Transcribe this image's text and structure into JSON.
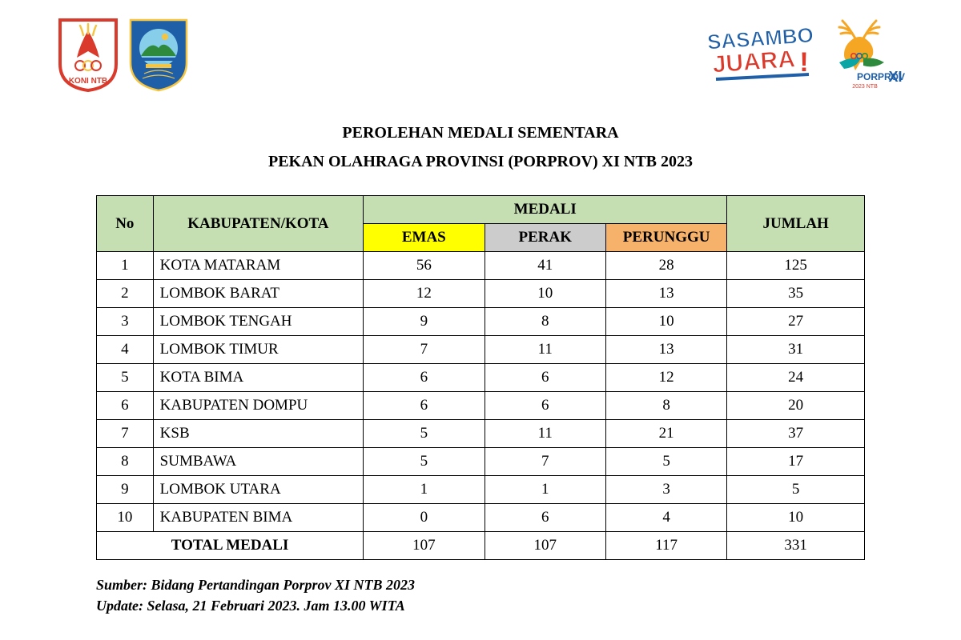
{
  "title_line1": "PEROLEHAN MEDALI SEMENTARA",
  "title_line2": "PEKAN OLAHRAGA PROVINSI (PORPROV) XI NTB 2023",
  "headers": {
    "no": "No",
    "region": "KABUPATEN/KOTA",
    "medal": "MEDALI",
    "gold": "EMAS",
    "silver": "PERAK",
    "bronze": "PERUNGGU",
    "total": "JUMLAH"
  },
  "rows": [
    {
      "no": "1",
      "name": "KOTA MATARAM",
      "g": "56",
      "s": "41",
      "b": "28",
      "t": "125"
    },
    {
      "no": "2",
      "name": "LOMBOK BARAT",
      "g": "12",
      "s": "10",
      "b": "13",
      "t": "35"
    },
    {
      "no": "3",
      "name": "LOMBOK TENGAH",
      "g": "9",
      "s": "8",
      "b": "10",
      "t": "27"
    },
    {
      "no": "4",
      "name": "LOMBOK TIMUR",
      "g": "7",
      "s": "11",
      "b": "13",
      "t": "31"
    },
    {
      "no": "5",
      "name": "KOTA BIMA",
      "g": "6",
      "s": "6",
      "b": "12",
      "t": "24"
    },
    {
      "no": "6",
      "name": "KABUPATEN DOMPU",
      "g": "6",
      "s": "6",
      "b": "8",
      "t": "20"
    },
    {
      "no": "7",
      "name": "KSB",
      "g": "5",
      "s": "11",
      "b": "21",
      "t": "37"
    },
    {
      "no": "8",
      "name": "SUMBAWA",
      "g": "5",
      "s": "7",
      "b": "5",
      "t": "17"
    },
    {
      "no": "9",
      "name": "LOMBOK UTARA",
      "g": "1",
      "s": "1",
      "b": "3",
      "t": "5"
    },
    {
      "no": "10",
      "name": "KABUPATEN BIMA",
      "g": "0",
      "s": "6",
      "b": "4",
      "t": "10"
    }
  ],
  "total_row": {
    "label": "TOTAL MEDALI",
    "g": "107",
    "s": "107",
    "b": "117",
    "t": "331"
  },
  "footer": {
    "source": "Sumber: Bidang Pertandingan Porprov XI NTB 2023",
    "update": "Update: Selasa, 21 Februari 2023. Jam 13.00 WITA"
  },
  "logos": {
    "right_text1": "SASAMBO",
    "right_text2": "JUARA!",
    "right_text3": "PORPROV",
    "right_text4": "XI",
    "right_text5": "2023 NTB",
    "left_text": "KONI NTB"
  },
  "colors": {
    "header_green": "#c5dfb3",
    "gold": "#ffff00",
    "silver": "#cccccc",
    "bronze": "#f6b26b",
    "koni_red": "#d93a2b",
    "koni_yellow": "#f5c542",
    "ntb_blue": "#1e5fa8",
    "ntb_green": "#2e8b3d",
    "sasambo_blue": "#1e5fa8",
    "sasambo_red": "#d93a2b",
    "deer_orange": "#f5a623",
    "porprov_teal": "#0aa6a6"
  }
}
